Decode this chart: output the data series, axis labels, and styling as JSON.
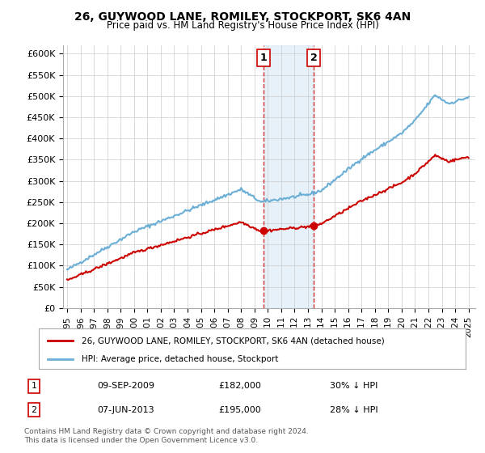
{
  "title": "26, GUYWOOD LANE, ROMILEY, STOCKPORT, SK6 4AN",
  "subtitle": "Price paid vs. HM Land Registry's House Price Index (HPI)",
  "ylabel_ticks": [
    "£0",
    "£50K",
    "£100K",
    "£150K",
    "£200K",
    "£250K",
    "£300K",
    "£350K",
    "£400K",
    "£450K",
    "£500K",
    "£550K",
    "£600K"
  ],
  "ytick_values": [
    0,
    50000,
    100000,
    150000,
    200000,
    250000,
    300000,
    350000,
    400000,
    450000,
    500000,
    550000,
    600000
  ],
  "ylim": [
    0,
    620000
  ],
  "xlim_start": 1995.0,
  "xlim_end": 2025.5,
  "hpi_color": "#6baed6",
  "price_color": "#cc0000",
  "shade_color": "#d0e4f5",
  "vline_color": "#cc0000",
  "marker_color": "#cc0000",
  "transaction1": {
    "date_num": 2009.69,
    "price": 182000,
    "label": "1"
  },
  "transaction2": {
    "date_num": 2013.44,
    "price": 195000,
    "label": "2"
  },
  "legend_label_red": "26, GUYWOOD LANE, ROMILEY, STOCKPORT, SK6 4AN (detached house)",
  "legend_label_blue": "HPI: Average price, detached house, Stockport",
  "table_row1": [
    "1",
    "09-SEP-2009",
    "£182,000",
    "30% ↓ HPI"
  ],
  "table_row2": [
    "2",
    "07-JUN-2013",
    "£195,000",
    "28% ↓ HPI"
  ],
  "footnote": "Contains HM Land Registry data © Crown copyright and database right 2024.\nThis data is licensed under the Open Government Licence v3.0.",
  "background_color": "#ffffff",
  "grid_color": "#cccccc"
}
